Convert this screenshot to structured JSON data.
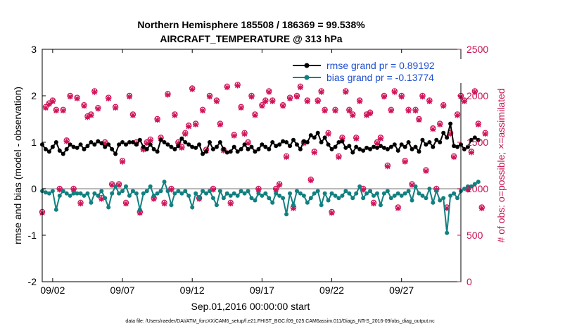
{
  "chart_data": {
    "type": "line",
    "title_line1": "Northern Hemisphere 185508 / 186369 = 99.538%",
    "title_line2": "AIRCRAFT_TEMPERATURE @ 313 hPa",
    "xlabel": "Sep.01,2016 00:00:00 start",
    "ylabel_left": "rmse and bias (model - observation)",
    "ylabel_right": "# of obs: o=possible; ×=assimilated",
    "footer": "data file: /Users/raeder/DAI/ATM_forcXX/CAM6_setup/f.e21.FHIST_BGC.f09_025.CAM6assim.011/Diags_NTrS_2016-09/obs_diag_output.nc",
    "x_ticks": [
      {
        "value": 1,
        "label": "09/02"
      },
      {
        "value": 6,
        "label": "09/07"
      },
      {
        "value": 11,
        "label": "09/12"
      },
      {
        "value": 16,
        "label": "09/17"
      },
      {
        "value": 21,
        "label": "09/22"
      },
      {
        "value": 26,
        "label": "09/27"
      }
    ],
    "xlim": [
      0.25,
      30.25
    ],
    "ylim_left": [
      -2,
      3
    ],
    "ylim_right": [
      0,
      2500
    ],
    "y_ticks_left": [
      "-2",
      "-1",
      "0",
      "1",
      "2",
      "3"
    ],
    "y_ticks_right": [
      "0",
      "500",
      "1000",
      "1500",
      "2000",
      "2500"
    ],
    "zero_line": 0,
    "legend": [
      {
        "label": "rmse grand pr = 0.89192",
        "color": "#000000"
      },
      {
        "label": "bias grand pr = -0.13774",
        "color": "#128080"
      }
    ],
    "colors": {
      "rmse": "#000000",
      "bias": "#128080",
      "obs": "#d01258",
      "zero": "#bbbbbb"
    },
    "series": [
      {
        "name": "rmse",
        "axis": "left",
        "x_start": 0.25,
        "x_step": 0.25,
        "values": [
          0.95,
          0.85,
          0.8,
          0.9,
          1.0,
          0.82,
          0.75,
          0.85,
          0.95,
          0.9,
          0.88,
          0.95,
          0.85,
          0.92,
          1.0,
          0.95,
          1.02,
          0.98,
          0.9,
          0.95,
          0.85,
          0.75,
          0.95,
          1.0,
          0.95,
          1.0,
          1.0,
          0.95,
          1.05,
          0.9,
          0.85,
          0.95,
          0.85,
          0.8,
          1.05,
          1.0,
          0.95,
          0.9,
          0.85,
          0.92,
          1.08,
          1.0,
          0.95,
          0.9,
          0.88,
          0.95,
          0.75,
          0.8,
          1.0,
          0.85,
          0.9,
          1.0,
          0.85,
          0.78,
          0.8,
          0.9,
          0.8,
          0.85,
          0.95,
          0.85,
          0.9,
          0.8,
          0.85,
          0.95,
          0.9,
          0.85,
          1.0,
          0.92,
          0.95,
          1.02,
          1.0,
          0.92,
          1.05,
          0.95,
          0.85,
          1.02,
          1.0,
          1.15,
          1.1,
          1.2,
          1.0,
          1.1,
          0.95,
          0.85,
          0.9,
          1.0,
          1.02,
          0.88,
          0.92,
          0.78,
          0.9,
          0.85,
          0.82,
          0.88,
          0.85,
          0.9,
          0.88,
          0.92,
          0.88,
          0.85,
          0.9,
          0.95,
          0.82,
          0.95,
          0.9,
          1.0,
          0.85,
          0.9,
          0.8,
          1.05,
          0.95,
          1.0,
          0.9,
          1.05,
          1.0,
          1.2,
          1.1,
          1.4,
          0.92,
          0.9,
          0.95,
          0.85,
          0.9,
          1.05,
          1.1,
          1.05
        ]
      },
      {
        "name": "bias",
        "axis": "left",
        "x_start": 0.25,
        "x_step": 0.25,
        "values": [
          -0.05,
          -0.08,
          -0.1,
          -0.05,
          -0.45,
          -0.15,
          -0.05,
          -0.1,
          -0.15,
          -0.1,
          -0.1,
          -0.1,
          -0.15,
          -0.1,
          -0.3,
          -0.1,
          -0.15,
          -0.05,
          -0.2,
          -0.4,
          -0.1,
          0.05,
          -0.1,
          -0.05,
          0.05,
          -0.15,
          -0.05,
          -0.1,
          -0.45,
          -0.1,
          -0.05,
          0.05,
          -0.15,
          -0.1,
          -0.05,
          0.15,
          -0.05,
          -0.35,
          -0.1,
          -0.05,
          -0.1,
          -0.05,
          -0.15,
          -0.4,
          -0.1,
          -0.2,
          -0.05,
          -0.1,
          -0.05,
          -0.2,
          -0.35,
          -0.05,
          -0.2,
          -0.1,
          -0.15,
          -0.1,
          -0.15,
          -0.05,
          -0.1,
          -0.05,
          -0.2,
          -0.25,
          -0.1,
          -0.15,
          -0.1,
          -0.2,
          -0.3,
          -0.1,
          -0.15,
          -0.2,
          -0.55,
          -0.1,
          -0.35,
          -0.05,
          -0.1,
          -0.15,
          -0.3,
          -0.2,
          -0.1,
          -0.05,
          -0.35,
          -0.1,
          -0.25,
          -0.1,
          -0.15,
          -0.2,
          -0.15,
          -0.05,
          -0.1,
          -0.2,
          -0.1,
          0.05,
          -0.2,
          -0.1,
          -0.05,
          -0.15,
          -0.1,
          -0.35,
          -0.1,
          -0.05,
          -0.2,
          -0.15,
          -0.1,
          -0.15,
          -0.1,
          -0.05,
          -0.25,
          0.05,
          -0.1,
          -0.15,
          -0.2,
          0.0,
          -0.3,
          -0.05,
          -0.25,
          -0.2,
          -0.95,
          -0.15,
          -0.1,
          -0.2,
          -0.05,
          0.0,
          0.05,
          0.05,
          0.1,
          0.15
        ]
      },
      {
        "name": "obs_possible",
        "axis": "right",
        "x_start": 0.25,
        "x_step": 0.25,
        "values": [
          750,
          1880,
          1920,
          1950,
          1850,
          1000,
          1850,
          1520,
          2000,
          1000,
          1980,
          850,
          1900,
          1780,
          1800,
          2050,
          1870,
          900,
          1500,
          1980,
          1050,
          1880,
          1050,
          1300,
          850,
          2000,
          1800,
          1500,
          750,
          1430,
          1500,
          1530,
          900,
          1750,
          1550,
          850,
          2020,
          1000,
          1800,
          1500,
          1450,
          1600,
          1680,
          2080,
          1700,
          900,
          1850,
          1420,
          2000,
          1000,
          1950,
          1700,
          1420,
          2100,
          850,
          1580,
          2120,
          1880,
          1600,
          1500,
          2000,
          1800,
          1000,
          1900,
          1950,
          2050,
          1950,
          1000,
          1050,
          1900,
          1350,
          1980,
          800,
          2000,
          2100,
          1500,
          1950,
          1100,
          1400,
          1950,
          2050,
          1850,
          1600,
          750,
          1850,
          1350,
          1550,
          2050,
          1850,
          1800,
          1550,
          1950,
          1000,
          1800,
          1820,
          850,
          1500,
          1550,
          2000,
          1250,
          1850,
          2050,
          800,
          2000,
          1300,
          1850,
          1050,
          1850,
          1750,
          2000,
          1200,
          1950,
          1650,
          1000,
          1700,
          1900,
          800,
          1600,
          1350,
          1800,
          2000,
          1950,
          1000,
          1400,
          2050,
          1700,
          800,
          1600
        ]
      },
      {
        "name": "obs_assimilated",
        "axis": "right",
        "x_start": 0.25,
        "x_step": 0.25,
        "values": [
          740,
          1870,
          1910,
          1940,
          1840,
          990,
          1840,
          1510,
          1990,
          990,
          1970,
          840,
          1890,
          1770,
          1790,
          2040,
          1860,
          890,
          1490,
          1970,
          1040,
          1870,
          1040,
          1290,
          840,
          1990,
          1790,
          1490,
          740,
          1420,
          1490,
          1520,
          890,
          1740,
          1540,
          840,
          2010,
          990,
          1790,
          1490,
          1440,
          1590,
          1670,
          2070,
          1690,
          890,
          1840,
          1410,
          1990,
          990,
          1940,
          1690,
          1410,
          2090,
          840,
          1570,
          2110,
          1870,
          1590,
          1490,
          1990,
          1790,
          990,
          1890,
          1940,
          2040,
          1940,
          990,
          1040,
          1890,
          1340,
          1970,
          790,
          1990,
          2090,
          1490,
          1940,
          1090,
          1390,
          1940,
          2040,
          1840,
          1590,
          740,
          1840,
          1340,
          1540,
          2040,
          1840,
          1790,
          1540,
          1940,
          990,
          1790,
          1810,
          840,
          1490,
          1540,
          1990,
          1240,
          1840,
          2040,
          790,
          1990,
          1290,
          1840,
          1040,
          1840,
          1740,
          1990,
          1190,
          1940,
          1640,
          990,
          1690,
          1890,
          790,
          1590,
          1340,
          1790,
          1990,
          1940,
          990,
          1390,
          2040,
          1690,
          790,
          1590
        ]
      }
    ]
  }
}
